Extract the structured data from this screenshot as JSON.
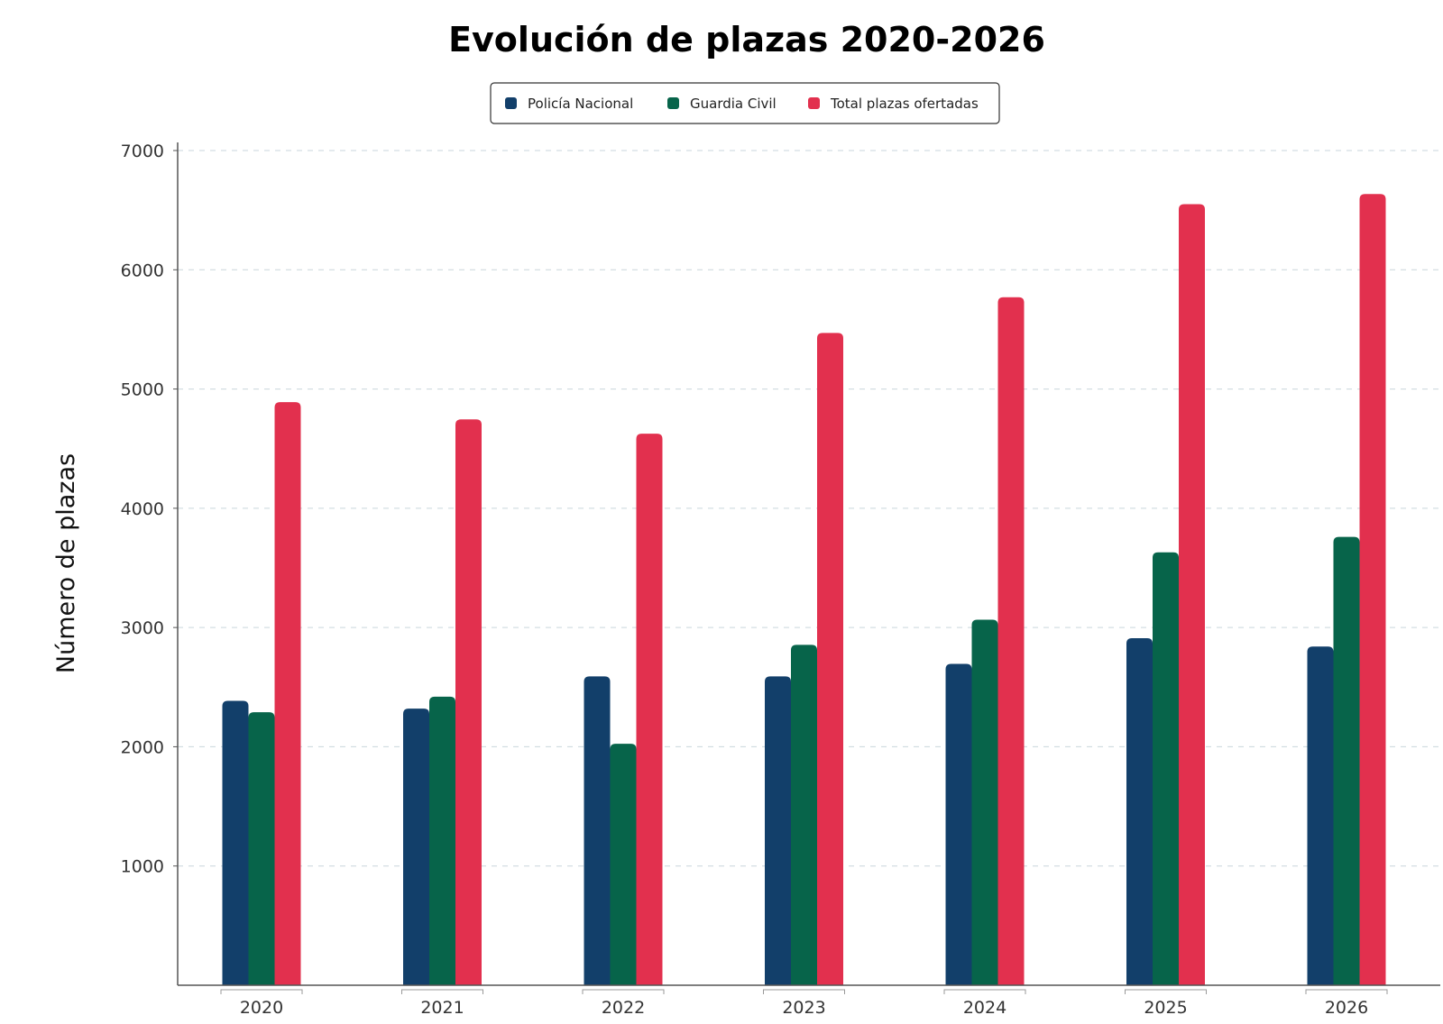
{
  "chart_data": {
    "type": "bar",
    "title": "Evolución de plazas 2020-2026",
    "xlabel": "",
    "ylabel": "Número de plazas",
    "categories": [
      "2020",
      "2021",
      "2022",
      "2023",
      "2024",
      "2025",
      "2026"
    ],
    "series": [
      {
        "name": "Policía Nacional",
        "color": "#123f6a",
        "values": [
          2385,
          2320,
          2590,
          2590,
          2695,
          2910,
          2840
        ]
      },
      {
        "name": "Guardia Civil",
        "color": "#07644a",
        "values": [
          2290,
          2420,
          2025,
          2855,
          3065,
          3630,
          3760
        ]
      },
      {
        "name": "Total plazas ofertadas",
        "color": "#e2304e",
        "values": [
          4890,
          4745,
          4625,
          5470,
          5770,
          6550,
          6635
        ]
      }
    ],
    "ylim": [
      0,
      7000
    ],
    "yticks": [
      "1000",
      "2000",
      "3000",
      "4000",
      "5000",
      "6000",
      "7000"
    ],
    "grid": "horizontal dashed",
    "legend": "top-center"
  }
}
